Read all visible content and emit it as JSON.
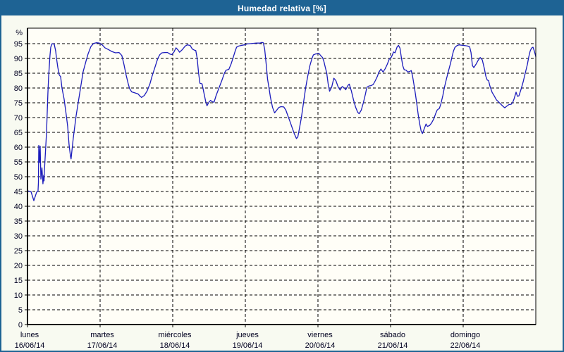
{
  "window": {
    "title": "Humedad relativa [%]"
  },
  "colors": {
    "titlebar_bg": "#1e6394",
    "window_border": "#1e6394",
    "content_bg": "#f8faf1",
    "plot_bg": "#fffef7",
    "line": "#1c1cbc",
    "grid": "#000000",
    "text": "#000020"
  },
  "chart_data": {
    "type": "line",
    "title": "Humedad relativa [%]",
    "ylabel": "%",
    "ylim": [
      0,
      100
    ],
    "ytick_step": 5,
    "grid": "dashed",
    "legend_position": "none",
    "y_tick_labels": [
      0,
      5,
      10,
      15,
      20,
      25,
      30,
      35,
      40,
      45,
      50,
      55,
      60,
      65,
      70,
      75,
      80,
      85,
      90,
      95
    ],
    "x_categories": [
      {
        "day": "lunes",
        "date": "16/06/14"
      },
      {
        "day": "martes",
        "date": "17/06/14"
      },
      {
        "day": "miércoles",
        "date": "18/06/14"
      },
      {
        "day": "jueves",
        "date": "19/06/14"
      },
      {
        "day": "viernes",
        "date": "20/06/14"
      },
      {
        "day": "sábado",
        "date": "21/06/14"
      },
      {
        "day": "domingo",
        "date": "22/06/14"
      }
    ],
    "x_unit_days": 7,
    "series": [
      {
        "name": "Humedad relativa [%]",
        "points": [
          [
            0.0,
            45.2
          ],
          [
            0.048,
            45.0
          ],
          [
            0.087,
            41.9
          ],
          [
            0.126,
            44.8
          ],
          [
            0.145,
            45.0
          ],
          [
            0.15,
            48.0
          ],
          [
            0.155,
            60.6
          ],
          [
            0.165,
            54.8
          ],
          [
            0.175,
            60.3
          ],
          [
            0.184,
            49.2
          ],
          [
            0.199,
            53.0
          ],
          [
            0.213,
            47.6
          ],
          [
            0.223,
            50.5
          ],
          [
            0.228,
            48.6
          ],
          [
            0.233,
            52.0
          ],
          [
            0.262,
            65.0
          ],
          [
            0.281,
            78.0
          ],
          [
            0.291,
            84.0
          ],
          [
            0.31,
            91.0
          ],
          [
            0.32,
            93.8
          ],
          [
            0.339,
            95.0
          ],
          [
            0.368,
            94.8
          ],
          [
            0.388,
            92.5
          ],
          [
            0.398,
            90.3
          ],
          [
            0.417,
            87.0
          ],
          [
            0.436,
            84.5
          ],
          [
            0.456,
            83.8
          ],
          [
            0.475,
            80.0
          ],
          [
            0.504,
            76.3
          ],
          [
            0.533,
            71.0
          ],
          [
            0.553,
            67.0
          ],
          [
            0.572,
            61.0
          ],
          [
            0.591,
            57.0
          ],
          [
            0.6,
            56.0
          ],
          [
            0.611,
            58.5
          ],
          [
            0.63,
            63.0
          ],
          [
            0.669,
            70.5
          ],
          [
            0.708,
            76.5
          ],
          [
            0.737,
            81.0
          ],
          [
            0.766,
            85.5
          ],
          [
            0.805,
            89.0
          ],
          [
            0.834,
            91.5
          ],
          [
            0.873,
            94.0
          ],
          [
            0.911,
            95.1
          ],
          [
            0.95,
            95.3
          ],
          [
            0.989,
            95.2
          ],
          [
            1.028,
            94.6
          ],
          [
            1.067,
            93.6
          ],
          [
            1.115,
            93.0
          ],
          [
            1.163,
            92.3
          ],
          [
            1.212,
            91.9
          ],
          [
            1.26,
            92.0
          ],
          [
            1.299,
            91.0
          ],
          [
            1.328,
            88.0
          ],
          [
            1.357,
            84.5
          ],
          [
            1.386,
            81.5
          ],
          [
            1.406,
            79.8
          ],
          [
            1.435,
            78.7
          ],
          [
            1.474,
            78.4
          ],
          [
            1.522,
            78.0
          ],
          [
            1.551,
            77.2
          ],
          [
            1.571,
            76.8
          ],
          [
            1.61,
            77.5
          ],
          [
            1.648,
            79.0
          ],
          [
            1.687,
            81.5
          ],
          [
            1.716,
            84.0
          ],
          [
            1.755,
            87.0
          ],
          [
            1.794,
            90.0
          ],
          [
            1.823,
            91.3
          ],
          [
            1.852,
            91.9
          ],
          [
            1.891,
            92.0
          ],
          [
            1.93,
            92.0
          ],
          [
            1.959,
            91.5
          ],
          [
            1.988,
            91.3
          ],
          [
            2.017,
            92.2
          ],
          [
            2.046,
            93.6
          ],
          [
            2.075,
            92.8
          ],
          [
            2.094,
            92.1
          ],
          [
            2.133,
            93.0
          ],
          [
            2.172,
            94.2
          ],
          [
            2.201,
            94.6
          ],
          [
            2.24,
            94.4
          ],
          [
            2.269,
            93.2
          ],
          [
            2.298,
            92.8
          ],
          [
            2.317,
            92.7
          ],
          [
            2.337,
            90.0
          ],
          [
            2.356,
            85.0
          ],
          [
            2.375,
            81.6
          ],
          [
            2.404,
            81.4
          ],
          [
            2.424,
            79.0
          ],
          [
            2.453,
            75.5
          ],
          [
            2.472,
            74.0
          ],
          [
            2.501,
            75.3
          ],
          [
            2.521,
            75.8
          ],
          [
            2.54,
            75.4
          ],
          [
            2.569,
            75.2
          ],
          [
            2.598,
            77.5
          ],
          [
            2.637,
            80.0
          ],
          [
            2.676,
            82.5
          ],
          [
            2.715,
            85.2
          ],
          [
            2.734,
            86.0
          ],
          [
            2.773,
            86.3
          ],
          [
            2.802,
            88.0
          ],
          [
            2.831,
            90.2
          ],
          [
            2.86,
            92.5
          ],
          [
            2.88,
            93.8
          ],
          [
            2.909,
            94.2
          ],
          [
            2.947,
            94.4
          ],
          [
            2.986,
            94.6
          ],
          [
            3.025,
            94.9
          ],
          [
            3.064,
            95.0
          ],
          [
            3.103,
            95.1
          ],
          [
            3.151,
            95.2
          ],
          [
            3.2,
            95.2
          ],
          [
            3.229,
            95.4
          ],
          [
            3.248,
            95.3
          ],
          [
            3.267,
            93.0
          ],
          [
            3.287,
            88.0
          ],
          [
            3.306,
            83.0
          ],
          [
            3.326,
            80.0
          ],
          [
            3.345,
            77.0
          ],
          [
            3.374,
            73.5
          ],
          [
            3.403,
            71.6
          ],
          [
            3.432,
            72.5
          ],
          [
            3.461,
            73.4
          ],
          [
            3.49,
            73.7
          ],
          [
            3.529,
            73.6
          ],
          [
            3.558,
            72.5
          ],
          [
            3.587,
            70.5
          ],
          [
            3.617,
            68.5
          ],
          [
            3.646,
            66.5
          ],
          [
            3.675,
            64.5
          ],
          [
            3.704,
            62.9
          ],
          [
            3.723,
            63.5
          ],
          [
            3.743,
            66.0
          ],
          [
            3.772,
            70.0
          ],
          [
            3.801,
            75.0
          ],
          [
            3.83,
            80.0
          ],
          [
            3.859,
            84.0
          ],
          [
            3.888,
            87.5
          ],
          [
            3.917,
            90.0
          ],
          [
            3.937,
            91.2
          ],
          [
            3.966,
            91.5
          ],
          [
            3.995,
            91.6
          ],
          [
            4.014,
            91.7
          ],
          [
            4.043,
            90.8
          ],
          [
            4.063,
            90.3
          ],
          [
            4.082,
            89.0
          ],
          [
            4.101,
            87.0
          ],
          [
            4.121,
            85.0
          ],
          [
            4.14,
            81.5
          ],
          [
            4.16,
            78.9
          ],
          [
            4.189,
            80.3
          ],
          [
            4.218,
            83.3
          ],
          [
            4.247,
            82.5
          ],
          [
            4.276,
            80.5
          ],
          [
            4.305,
            79.3
          ],
          [
            4.334,
            80.5
          ],
          [
            4.363,
            80.0
          ],
          [
            4.383,
            79.4
          ],
          [
            4.412,
            80.8
          ],
          [
            4.431,
            81.3
          ],
          [
            4.46,
            79.0
          ],
          [
            4.489,
            76.0
          ],
          [
            4.518,
            73.5
          ],
          [
            4.547,
            71.8
          ],
          [
            4.567,
            71.3
          ],
          [
            4.596,
            72.5
          ],
          [
            4.625,
            75.0
          ],
          [
            4.654,
            78.0
          ],
          [
            4.673,
            80.2
          ],
          [
            4.702,
            80.7
          ],
          [
            4.732,
            80.8
          ],
          [
            4.761,
            81.2
          ],
          [
            4.79,
            82.5
          ],
          [
            4.819,
            84.0
          ],
          [
            4.838,
            85.3
          ],
          [
            4.867,
            86.4
          ],
          [
            4.896,
            85.4
          ],
          [
            4.925,
            86.5
          ],
          [
            4.954,
            88.0
          ],
          [
            4.983,
            89.8
          ],
          [
            5.013,
            90.5
          ],
          [
            5.042,
            92.2
          ],
          [
            5.061,
            91.9
          ],
          [
            5.09,
            93.9
          ],
          [
            5.11,
            94.4
          ],
          [
            5.129,
            93.5
          ],
          [
            5.148,
            90.5
          ],
          [
            5.168,
            87.5
          ],
          [
            5.187,
            86.2
          ],
          [
            5.216,
            86.0
          ],
          [
            5.236,
            85.4
          ],
          [
            5.265,
            85.6
          ],
          [
            5.284,
            85.9
          ],
          [
            5.303,
            84.0
          ],
          [
            5.323,
            81.0
          ],
          [
            5.342,
            78.0
          ],
          [
            5.362,
            74.5
          ],
          [
            5.381,
            71.0
          ],
          [
            5.4,
            68.0
          ],
          [
            5.42,
            65.5
          ],
          [
            5.439,
            64.6
          ],
          [
            5.468,
            66.5
          ],
          [
            5.488,
            67.8
          ],
          [
            5.507,
            67.0
          ],
          [
            5.536,
            67.3
          ],
          [
            5.565,
            68.2
          ],
          [
            5.594,
            69.5
          ],
          [
            5.623,
            71.5
          ],
          [
            5.643,
            72.6
          ],
          [
            5.672,
            73.1
          ],
          [
            5.691,
            74.5
          ],
          [
            5.72,
            77.5
          ],
          [
            5.74,
            80.0
          ],
          [
            5.769,
            83.0
          ],
          [
            5.798,
            85.8
          ],
          [
            5.827,
            88.5
          ],
          [
            5.846,
            90.5
          ],
          [
            5.866,
            92.5
          ],
          [
            5.885,
            93.7
          ],
          [
            5.914,
            94.3
          ],
          [
            5.943,
            94.6
          ],
          [
            5.972,
            94.5
          ],
          [
            6.002,
            94.4
          ],
          [
            6.031,
            94.3
          ],
          [
            6.06,
            94.2
          ],
          [
            6.089,
            93.9
          ],
          [
            6.108,
            92.0
          ],
          [
            6.127,
            87.6
          ],
          [
            6.147,
            86.9
          ],
          [
            6.176,
            88.0
          ],
          [
            6.205,
            89.3
          ],
          [
            6.234,
            90.3
          ],
          [
            6.263,
            89.5
          ],
          [
            6.292,
            86.5
          ],
          [
            6.312,
            84.0
          ],
          [
            6.331,
            82.7
          ],
          [
            6.35,
            82.5
          ],
          [
            6.37,
            80.5
          ],
          [
            6.399,
            78.5
          ],
          [
            6.428,
            77.3
          ],
          [
            6.457,
            76.0
          ],
          [
            6.486,
            75.3
          ],
          [
            6.515,
            74.6
          ],
          [
            6.544,
            73.9
          ],
          [
            6.573,
            73.3
          ],
          [
            6.602,
            73.9
          ],
          [
            6.631,
            74.4
          ],
          [
            6.661,
            74.5
          ],
          [
            6.68,
            75.0
          ],
          [
            6.699,
            76.2
          ],
          [
            6.728,
            78.6
          ],
          [
            6.748,
            77.2
          ],
          [
            6.767,
            77.3
          ],
          [
            6.796,
            79.5
          ],
          [
            6.825,
            82.0
          ],
          [
            6.854,
            85.0
          ],
          [
            6.884,
            88.0
          ],
          [
            6.903,
            90.5
          ],
          [
            6.922,
            92.5
          ],
          [
            6.942,
            93.5
          ],
          [
            6.961,
            93.8
          ],
          [
            6.98,
            92.5
          ],
          [
            7.0,
            90.6
          ]
        ]
      }
    ]
  }
}
